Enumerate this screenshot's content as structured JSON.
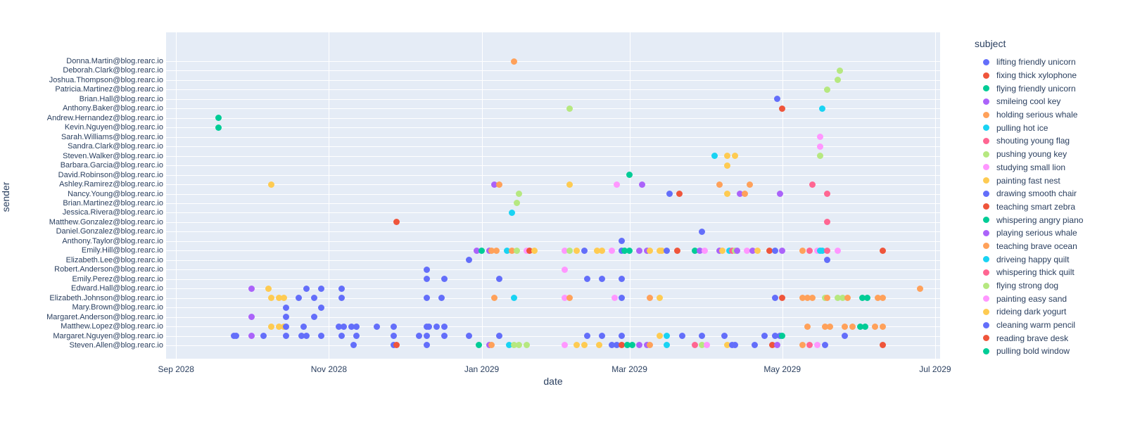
{
  "figure": {
    "xlabel": "date",
    "ylabel": "sender",
    "legend_title": "subject",
    "plot_bg": "#e5ecf6",
    "text_color": "#2a3f5f"
  },
  "chart_data": {
    "type": "scatter",
    "title": "",
    "xlabel": "date",
    "ylabel": "sender",
    "legend_title": "subject",
    "grid": true,
    "legend_position": "right",
    "palette": [
      "#636efa",
      "#ef553b",
      "#00cc96",
      "#ab63fa",
      "#ffa15a",
      "#19d3f3",
      "#ff6692",
      "#b6e880",
      "#ff97ff",
      "#fecb52"
    ],
    "subjects": [
      {
        "label": "lifting friendly unicorn",
        "color": "#636efa"
      },
      {
        "label": "fixing thick xylophone",
        "color": "#ef553b"
      },
      {
        "label": "flying friendly unicorn",
        "color": "#00cc96"
      },
      {
        "label": "smileing cool key",
        "color": "#ab63fa"
      },
      {
        "label": "holding serious whale",
        "color": "#ffa15a"
      },
      {
        "label": "pulling hot ice",
        "color": "#19d3f3"
      },
      {
        "label": "shouting young flag",
        "color": "#ff6692"
      },
      {
        "label": "pushing young key",
        "color": "#b6e880"
      },
      {
        "label": "studying small lion",
        "color": "#ff97ff"
      },
      {
        "label": "painting fast nest",
        "color": "#fecb52"
      },
      {
        "label": "drawing smooth chair",
        "color": "#636efa"
      },
      {
        "label": "teaching smart zebra",
        "color": "#ef553b"
      },
      {
        "label": "whispering angry piano",
        "color": "#00cc96"
      },
      {
        "label": "playing serious whale",
        "color": "#ab63fa"
      },
      {
        "label": "teaching brave ocean",
        "color": "#ffa15a"
      },
      {
        "label": "driveing happy quilt",
        "color": "#19d3f3"
      },
      {
        "label": "whispering thick quilt",
        "color": "#ff6692"
      },
      {
        "label": "flying strong dog",
        "color": "#b6e880"
      },
      {
        "label": "painting easy sand",
        "color": "#ff97ff"
      },
      {
        "label": "rideing dark yogurt",
        "color": "#fecb52"
      },
      {
        "label": "cleaning warm pencil",
        "color": "#636efa"
      },
      {
        "label": "reading brave desk",
        "color": "#ef553b"
      },
      {
        "label": "pulling bold window",
        "color": "#00cc96"
      }
    ],
    "senders": [
      "Donna.Martin@blog.rearc.io",
      "Deborah.Clark@blog.rearc.io",
      "Joshua.Thompson@blog.rearc.io",
      "Patricia.Martinez@blog.rearc.io",
      "Brian.Hall@blog.rearc.io",
      "Anthony.Baker@blog.rearc.io",
      "Andrew.Hernandez@blog.rearc.io",
      "Kevin.Nguyen@blog.rearc.io",
      "Sarah.Williams@blog.rearc.io",
      "Sandra.Clark@blog.rearc.io",
      "Steven.Walker@blog.rearc.io",
      "Barbara.Garcia@blog.rearc.io",
      "David.Robinson@blog.rearc.io",
      "Ashley.Ramirez@blog.rearc.io",
      "Nancy.Young@blog.rearc.io",
      "Brian.Martinez@blog.rearc.io",
      "Jessica.Rivera@blog.rearc.io",
      "Matthew.Gonzalez@blog.rearc.io",
      "Daniel.Gonzalez@blog.rearc.io",
      "Anthony.Taylor@blog.rearc.io",
      "Emily.Hill@blog.rearc.io",
      "Elizabeth.Lee@blog.rearc.io",
      "Robert.Anderson@blog.rearc.io",
      "Emily.Perez@blog.rearc.io",
      "Edward.Hall@blog.rearc.io",
      "Elizabeth.Johnson@blog.rearc.io",
      "Mary.Brown@blog.rearc.io",
      "Margaret.Anderson@blog.rearc.io",
      "Matthew.Lopez@blog.rearc.io",
      "Margaret.Nguyen@blog.rearc.io",
      "Steven.Allen@blog.rearc.io"
    ],
    "x_axis": {
      "start_date": "2028-08-28",
      "end_date": "2029-07-03",
      "ticks": [
        {
          "label": "Sep 2028",
          "date": "2028-09-01"
        },
        {
          "label": "Nov 2028",
          "date": "2028-11-01"
        },
        {
          "label": "Jan 2029",
          "date": "2029-01-01"
        },
        {
          "label": "Mar 2029",
          "date": "2029-03-01"
        },
        {
          "label": "May 2029",
          "date": "2029-05-01"
        },
        {
          "label": "Jul 2029",
          "date": "2029-07-01"
        }
      ]
    },
    "points_format": [
      "date",
      "sender_index",
      "color_index"
    ],
    "points": [
      [
        "2029-01-14",
        0,
        4
      ],
      [
        "2029-05-24",
        1,
        7
      ],
      [
        "2029-05-23",
        2,
        7
      ],
      [
        "2029-05-19",
        3,
        7
      ],
      [
        "2029-04-29",
        4,
        0
      ],
      [
        "2029-02-05",
        5,
        7
      ],
      [
        "2029-05-01",
        5,
        1
      ],
      [
        "2029-05-17",
        5,
        5
      ],
      [
        "2028-09-18",
        6,
        2
      ],
      [
        "2028-09-18",
        7,
        2
      ],
      [
        "2029-05-16",
        8,
        8
      ],
      [
        "2029-05-16",
        9,
        8
      ],
      [
        "2029-04-04",
        10,
        5
      ],
      [
        "2029-04-09",
        10,
        9
      ],
      [
        "2029-04-12",
        10,
        9
      ],
      [
        "2029-05-16",
        10,
        7
      ],
      [
        "2029-04-09",
        11,
        9
      ],
      [
        "2029-03-01",
        12,
        2
      ],
      [
        "2028-10-09",
        13,
        9
      ],
      [
        "2029-01-06",
        13,
        3
      ],
      [
        "2029-01-08",
        13,
        4
      ],
      [
        "2029-02-05",
        13,
        9
      ],
      [
        "2029-02-24",
        13,
        8
      ],
      [
        "2029-03-06",
        13,
        3
      ],
      [
        "2029-04-06",
        13,
        4
      ],
      [
        "2029-04-18",
        13,
        4
      ],
      [
        "2029-05-13",
        13,
        6
      ],
      [
        "2029-01-16",
        14,
        7
      ],
      [
        "2029-03-17",
        14,
        0
      ],
      [
        "2029-03-21",
        14,
        1
      ],
      [
        "2029-04-09",
        14,
        9
      ],
      [
        "2029-04-14",
        14,
        3
      ],
      [
        "2029-04-16",
        14,
        4
      ],
      [
        "2029-04-30",
        14,
        3
      ],
      [
        "2029-05-19",
        14,
        6
      ],
      [
        "2029-01-15",
        15,
        7
      ],
      [
        "2029-01-13",
        16,
        5
      ],
      [
        "2028-11-28",
        17,
        1
      ],
      [
        "2029-05-19",
        17,
        6
      ],
      [
        "2029-03-30",
        18,
        0
      ],
      [
        "2029-02-26",
        19,
        0
      ],
      [
        "2028-12-30",
        20,
        3
      ],
      [
        "2029-01-01",
        20,
        2
      ],
      [
        "2029-01-04",
        20,
        3
      ],
      [
        "2029-01-05",
        20,
        4
      ],
      [
        "2029-01-07",
        20,
        4
      ],
      [
        "2029-01-11",
        20,
        5
      ],
      [
        "2029-01-13",
        20,
        4
      ],
      [
        "2029-01-15",
        20,
        7
      ],
      [
        "2029-01-19",
        20,
        8
      ],
      [
        "2029-01-20",
        20,
        1
      ],
      [
        "2029-01-22",
        20,
        9
      ],
      [
        "2029-02-03",
        20,
        8
      ],
      [
        "2029-02-05",
        20,
        7
      ],
      [
        "2029-02-08",
        20,
        9
      ],
      [
        "2029-02-11",
        20,
        0
      ],
      [
        "2029-02-16",
        20,
        9
      ],
      [
        "2029-02-18",
        20,
        9
      ],
      [
        "2029-02-22",
        20,
        8
      ],
      [
        "2029-02-26",
        20,
        0
      ],
      [
        "2029-02-27",
        20,
        2
      ],
      [
        "2029-03-01",
        20,
        2
      ],
      [
        "2029-03-05",
        20,
        3
      ],
      [
        "2029-03-08",
        20,
        3
      ],
      [
        "2029-03-09",
        20,
        9
      ],
      [
        "2029-03-13",
        20,
        9
      ],
      [
        "2029-03-14",
        20,
        9
      ],
      [
        "2029-03-16",
        20,
        0
      ],
      [
        "2029-03-20",
        20,
        1
      ],
      [
        "2029-03-27",
        20,
        2
      ],
      [
        "2029-03-29",
        20,
        3
      ],
      [
        "2029-03-31",
        20,
        8
      ],
      [
        "2029-04-06",
        20,
        3
      ],
      [
        "2029-04-07",
        20,
        9
      ],
      [
        "2029-04-10",
        20,
        5
      ],
      [
        "2029-04-11",
        20,
        6
      ],
      [
        "2029-04-12",
        20,
        7
      ],
      [
        "2029-04-13",
        20,
        3
      ],
      [
        "2029-04-17",
        20,
        8
      ],
      [
        "2029-04-19",
        20,
        3
      ],
      [
        "2029-04-21",
        20,
        9
      ],
      [
        "2029-04-26",
        20,
        1
      ],
      [
        "2029-04-28",
        20,
        0
      ],
      [
        "2029-05-01",
        20,
        3
      ],
      [
        "2029-05-09",
        20,
        4
      ],
      [
        "2029-05-12",
        20,
        6
      ],
      [
        "2029-05-15",
        20,
        8
      ],
      [
        "2029-05-16",
        20,
        5
      ],
      [
        "2029-05-17",
        20,
        5
      ],
      [
        "2029-05-19",
        20,
        6
      ],
      [
        "2029-05-23",
        20,
        8
      ],
      [
        "2029-06-10",
        20,
        1
      ],
      [
        "2028-12-27",
        21,
        0
      ],
      [
        "2029-05-19",
        21,
        0
      ],
      [
        "2028-12-10",
        22,
        0
      ],
      [
        "2029-02-03",
        22,
        8
      ],
      [
        "2028-12-10",
        23,
        0
      ],
      [
        "2028-12-17",
        23,
        0
      ],
      [
        "2029-01-08",
        23,
        0
      ],
      [
        "2029-02-12",
        23,
        0
      ],
      [
        "2029-02-18",
        23,
        0
      ],
      [
        "2029-02-26",
        23,
        0
      ],
      [
        "2028-10-01",
        24,
        3
      ],
      [
        "2028-10-08",
        24,
        9
      ],
      [
        "2028-10-23",
        24,
        0
      ],
      [
        "2028-10-29",
        24,
        0
      ],
      [
        "2028-11-06",
        24,
        0
      ],
      [
        "2029-06-25",
        24,
        4
      ],
      [
        "2028-10-09",
        25,
        9
      ],
      [
        "2028-10-12",
        25,
        9
      ],
      [
        "2028-10-14",
        25,
        9
      ],
      [
        "2028-10-20",
        25,
        0
      ],
      [
        "2028-10-26",
        25,
        0
      ],
      [
        "2028-11-06",
        25,
        0
      ],
      [
        "2028-12-10",
        25,
        0
      ],
      [
        "2028-12-16",
        25,
        0
      ],
      [
        "2029-01-06",
        25,
        4
      ],
      [
        "2029-01-14",
        25,
        5
      ],
      [
        "2029-02-03",
        25,
        8
      ],
      [
        "2029-02-05",
        25,
        4
      ],
      [
        "2029-02-23",
        25,
        8
      ],
      [
        "2029-02-26",
        25,
        0
      ],
      [
        "2029-03-09",
        25,
        4
      ],
      [
        "2029-03-13",
        25,
        9
      ],
      [
        "2029-04-28",
        25,
        0
      ],
      [
        "2029-05-01",
        25,
        1
      ],
      [
        "2029-05-09",
        25,
        4
      ],
      [
        "2029-05-11",
        25,
        4
      ],
      [
        "2029-05-13",
        25,
        4
      ],
      [
        "2029-05-18",
        25,
        7
      ],
      [
        "2029-05-19",
        25,
        4
      ],
      [
        "2029-05-23",
        25,
        7
      ],
      [
        "2029-05-25",
        25,
        7
      ],
      [
        "2029-05-27",
        25,
        4
      ],
      [
        "2029-06-02",
        25,
        2
      ],
      [
        "2029-06-04",
        25,
        2
      ],
      [
        "2029-06-08",
        25,
        4
      ],
      [
        "2029-06-10",
        25,
        4
      ],
      [
        "2028-10-15",
        26,
        0
      ],
      [
        "2028-10-29",
        26,
        0
      ],
      [
        "2028-10-01",
        27,
        3
      ],
      [
        "2028-10-15",
        27,
        0
      ],
      [
        "2028-10-26",
        27,
        0
      ],
      [
        "2028-10-09",
        28,
        9
      ],
      [
        "2028-10-12",
        28,
        9
      ],
      [
        "2028-10-14",
        28,
        9
      ],
      [
        "2028-10-15",
        28,
        0
      ],
      [
        "2028-10-22",
        28,
        0
      ],
      [
        "2028-11-05",
        28,
        0
      ],
      [
        "2028-11-07",
        28,
        0
      ],
      [
        "2028-11-10",
        28,
        0
      ],
      [
        "2028-11-12",
        28,
        0
      ],
      [
        "2028-11-20",
        28,
        0
      ],
      [
        "2028-11-27",
        28,
        0
      ],
      [
        "2028-12-10",
        28,
        0
      ],
      [
        "2028-12-11",
        28,
        0
      ],
      [
        "2028-12-14",
        28,
        0
      ],
      [
        "2028-12-17",
        28,
        0
      ],
      [
        "2029-05-11",
        28,
        4
      ],
      [
        "2029-05-18",
        28,
        4
      ],
      [
        "2029-05-20",
        28,
        4
      ],
      [
        "2029-05-26",
        28,
        4
      ],
      [
        "2029-05-29",
        28,
        4
      ],
      [
        "2029-06-01",
        28,
        2
      ],
      [
        "2029-06-03",
        28,
        2
      ],
      [
        "2029-06-07",
        28,
        4
      ],
      [
        "2029-06-10",
        28,
        4
      ],
      [
        "2028-09-24",
        29,
        0
      ],
      [
        "2028-09-25",
        29,
        0
      ],
      [
        "2028-10-01",
        29,
        3
      ],
      [
        "2028-10-06",
        29,
        0
      ],
      [
        "2028-10-15",
        29,
        0
      ],
      [
        "2028-10-21",
        29,
        0
      ],
      [
        "2028-10-23",
        29,
        0
      ],
      [
        "2028-10-29",
        29,
        0
      ],
      [
        "2028-11-06",
        29,
        0
      ],
      [
        "2028-11-12",
        29,
        0
      ],
      [
        "2028-11-27",
        29,
        0
      ],
      [
        "2028-12-07",
        29,
        0
      ],
      [
        "2028-12-10",
        29,
        0
      ],
      [
        "2028-12-17",
        29,
        0
      ],
      [
        "2028-12-27",
        29,
        0
      ],
      [
        "2029-01-08",
        29,
        0
      ],
      [
        "2029-02-12",
        29,
        0
      ],
      [
        "2029-02-18",
        29,
        0
      ],
      [
        "2029-02-26",
        29,
        0
      ],
      [
        "2029-03-13",
        29,
        9
      ],
      [
        "2029-03-16",
        29,
        5
      ],
      [
        "2029-03-22",
        29,
        0
      ],
      [
        "2029-03-30",
        29,
        0
      ],
      [
        "2029-04-08",
        29,
        0
      ],
      [
        "2029-04-24",
        29,
        0
      ],
      [
        "2029-04-28",
        29,
        0
      ],
      [
        "2029-04-30",
        29,
        0
      ],
      [
        "2029-05-01",
        29,
        2
      ],
      [
        "2029-05-26",
        29,
        0
      ],
      [
        "2028-11-11",
        30,
        0
      ],
      [
        "2028-11-27",
        30,
        0
      ],
      [
        "2028-11-28",
        30,
        1
      ],
      [
        "2028-12-10",
        30,
        0
      ],
      [
        "2028-12-31",
        30,
        2
      ],
      [
        "2029-01-04",
        30,
        3
      ],
      [
        "2029-01-05",
        30,
        4
      ],
      [
        "2029-01-12",
        30,
        5
      ],
      [
        "2029-01-14",
        30,
        7
      ],
      [
        "2029-01-16",
        30,
        7
      ],
      [
        "2029-01-19",
        30,
        7
      ],
      [
        "2029-02-03",
        30,
        8
      ],
      [
        "2029-02-08",
        30,
        9
      ],
      [
        "2029-02-11",
        30,
        9
      ],
      [
        "2029-02-17",
        30,
        9
      ],
      [
        "2029-02-22",
        30,
        0
      ],
      [
        "2029-02-24",
        30,
        0
      ],
      [
        "2029-02-26",
        30,
        1
      ],
      [
        "2029-02-28",
        30,
        2
      ],
      [
        "2029-03-02",
        30,
        2
      ],
      [
        "2029-03-05",
        30,
        3
      ],
      [
        "2029-03-08",
        30,
        3
      ],
      [
        "2029-03-09",
        30,
        4
      ],
      [
        "2029-03-16",
        30,
        5
      ],
      [
        "2029-03-27",
        30,
        6
      ],
      [
        "2029-03-30",
        30,
        7
      ],
      [
        "2029-04-01",
        30,
        8
      ],
      [
        "2029-04-09",
        30,
        9
      ],
      [
        "2029-04-11",
        30,
        0
      ],
      [
        "2029-04-12",
        30,
        0
      ],
      [
        "2029-04-20",
        30,
        0
      ],
      [
        "2029-04-27",
        30,
        1
      ],
      [
        "2029-04-29",
        30,
        3
      ],
      [
        "2029-05-09",
        30,
        4
      ],
      [
        "2029-05-12",
        30,
        6
      ],
      [
        "2029-05-15",
        30,
        8
      ],
      [
        "2029-05-18",
        30,
        0
      ],
      [
        "2029-06-10",
        30,
        1
      ]
    ]
  }
}
